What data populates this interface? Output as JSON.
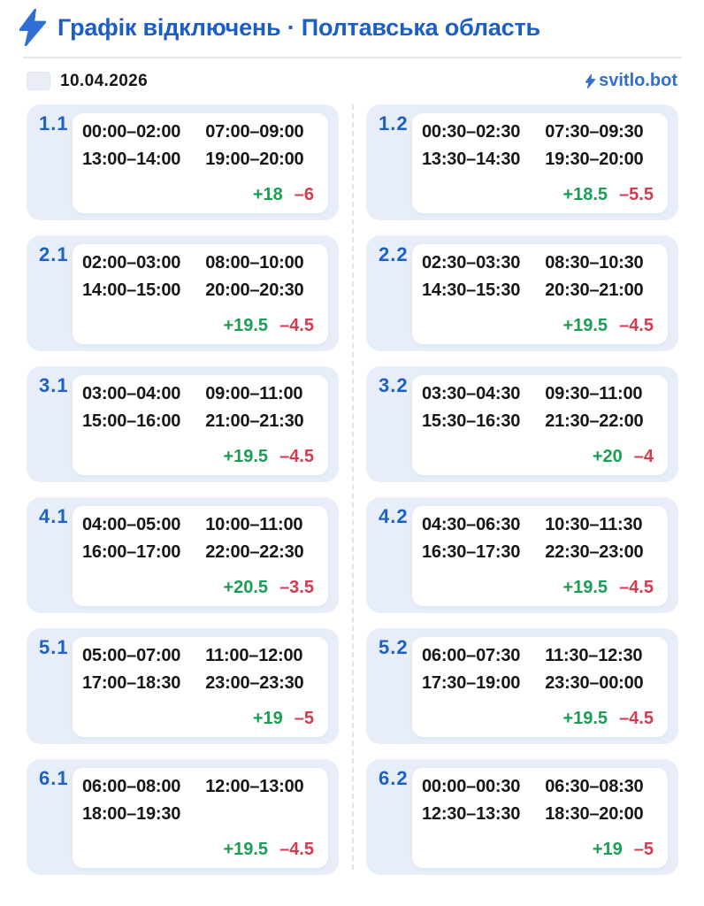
{
  "header": {
    "title": "Графік відключень · Полтавська область"
  },
  "subbar": {
    "date": "10.04.2026",
    "brand": "svitlo.bot"
  },
  "colors": {
    "accent_blue": "#1b5ec5",
    "card_bg": "#e7eefa",
    "plus_green": "#1a9e54",
    "minus_red": "#d7394f"
  },
  "groups": [
    {
      "id": "1.1",
      "times": [
        "00:00–02:00",
        "07:00–09:00",
        "13:00–14:00",
        "19:00–20:00"
      ],
      "plus": "+18",
      "minus": "–6"
    },
    {
      "id": "1.2",
      "times": [
        "00:30–02:30",
        "07:30–09:30",
        "13:30–14:30",
        "19:30–20:00"
      ],
      "plus": "+18.5",
      "minus": "–5.5"
    },
    {
      "id": "2.1",
      "times": [
        "02:00–03:00",
        "08:00–10:00",
        "14:00–15:00",
        "20:00–20:30"
      ],
      "plus": "+19.5",
      "minus": "–4.5"
    },
    {
      "id": "2.2",
      "times": [
        "02:30–03:30",
        "08:30–10:30",
        "14:30–15:30",
        "20:30–21:00"
      ],
      "plus": "+19.5",
      "minus": "–4.5"
    },
    {
      "id": "3.1",
      "times": [
        "03:00–04:00",
        "09:00–11:00",
        "15:00–16:00",
        "21:00–21:30"
      ],
      "plus": "+19.5",
      "minus": "–4.5"
    },
    {
      "id": "3.2",
      "times": [
        "03:30–04:30",
        "09:30–11:00",
        "15:30–16:30",
        "21:30–22:00"
      ],
      "plus": "+20",
      "minus": "–4"
    },
    {
      "id": "4.1",
      "times": [
        "04:00–05:00",
        "10:00–11:00",
        "16:00–17:00",
        "22:00–22:30"
      ],
      "plus": "+20.5",
      "minus": "–3.5"
    },
    {
      "id": "4.2",
      "times": [
        "04:30–06:30",
        "10:30–11:30",
        "16:30–17:30",
        "22:30–23:00"
      ],
      "plus": "+19.5",
      "minus": "–4.5"
    },
    {
      "id": "5.1",
      "times": [
        "05:00–07:00",
        "11:00–12:00",
        "17:00–18:30",
        "23:00–23:30"
      ],
      "plus": "+19",
      "minus": "–5"
    },
    {
      "id": "5.2",
      "times": [
        "06:00–07:30",
        "11:30–12:30",
        "17:30–19:00",
        "23:30–00:00"
      ],
      "plus": "+19.5",
      "minus": "–4.5"
    },
    {
      "id": "6.1",
      "times": [
        "06:00–08:00",
        "12:00–13:00",
        "18:00–19:30"
      ],
      "plus": "+19.5",
      "minus": "–4.5"
    },
    {
      "id": "6.2",
      "times": [
        "00:00–00:30",
        "06:30–08:30",
        "12:30–13:30",
        "18:30–20:00"
      ],
      "plus": "+19",
      "minus": "–5"
    }
  ]
}
